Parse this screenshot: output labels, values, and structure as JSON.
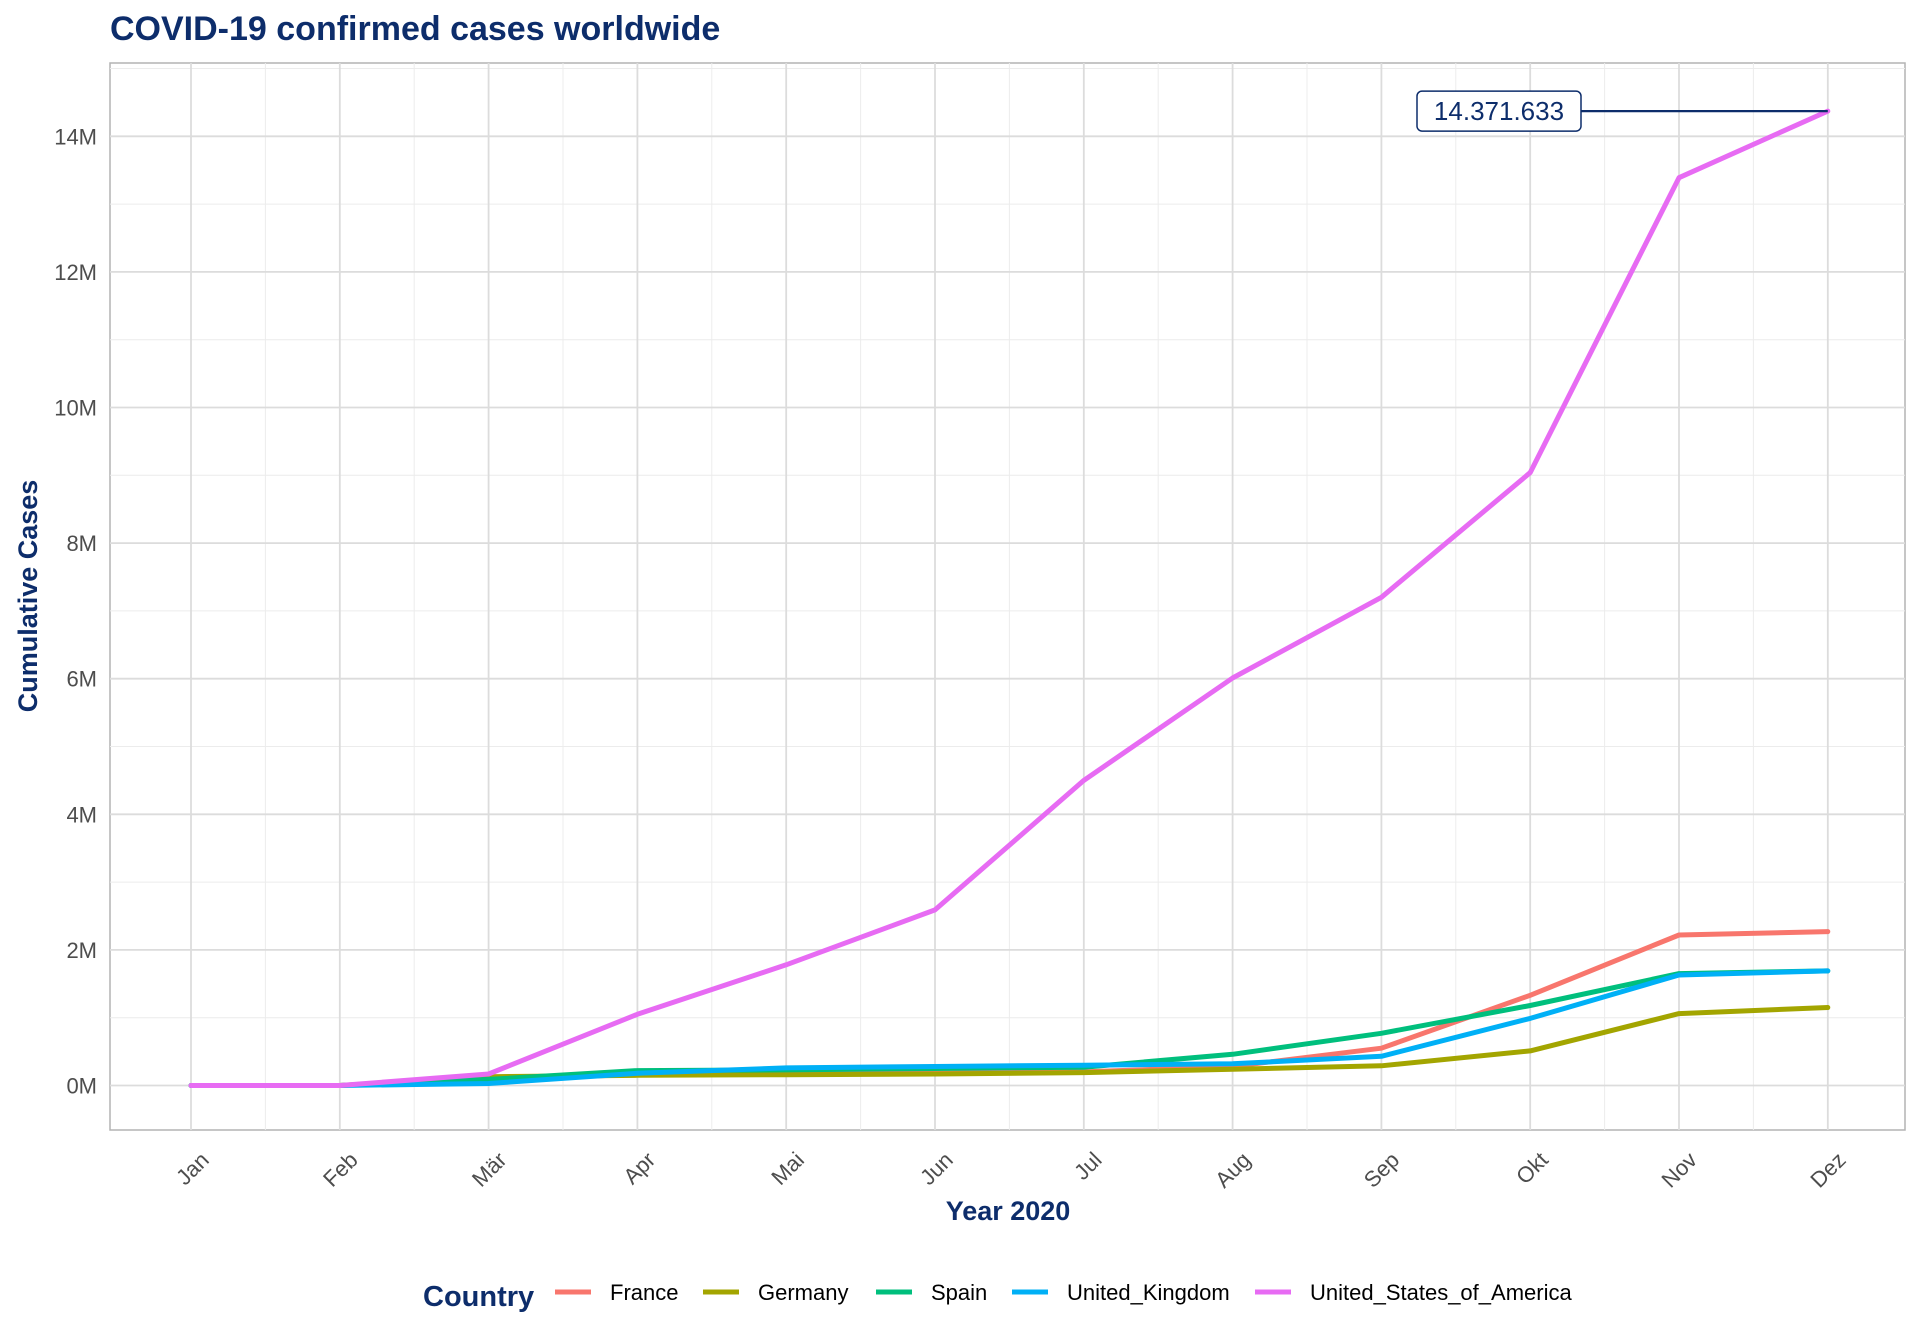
{
  "chart_data": {
    "type": "line",
    "title": "COVID-19 confirmed cases worldwide",
    "xlabel": "Year 2020",
    "ylabel": "Cumulative Cases",
    "categories": [
      "Jan",
      "Feb",
      "Mär",
      "Apr",
      "Mai",
      "Jun",
      "Jul",
      "Aug",
      "Sep",
      "Okt",
      "Nov",
      "Dez"
    ],
    "ylim": [
      -700000,
      15100000
    ],
    "yticks": [
      0,
      2000000,
      4000000,
      6000000,
      8000000,
      10000000,
      12000000,
      14000000
    ],
    "ytick_labels": [
      "0M",
      "2M",
      "4M",
      "6M",
      "8M",
      "10M",
      "12M",
      "14M"
    ],
    "grid": true,
    "legend": {
      "title": "Country",
      "position": "bottom"
    },
    "series": [
      {
        "name": "France",
        "color": "#F8766D",
        "values": [
          0,
          100,
          100000,
          160000,
          170000,
          180000,
          200000,
          280000,
          550000,
          1330000,
          2220000,
          2270000
        ]
      },
      {
        "name": "Germany",
        "color": "#A3A500",
        "values": [
          0,
          10,
          130000,
          150000,
          160000,
          170000,
          190000,
          240000,
          290000,
          510000,
          1060000,
          1150000
        ]
      },
      {
        "name": "Spain",
        "color": "#00BF7D",
        "values": [
          0,
          0,
          90000,
          220000,
          230000,
          250000,
          270000,
          460000,
          770000,
          1180000,
          1650000,
          1690000
        ]
      },
      {
        "name": "United_Kingdom",
        "color": "#00B0F6",
        "values": [
          0,
          0,
          30000,
          180000,
          260000,
          280000,
          300000,
          320000,
          430000,
          990000,
          1630000,
          1690000
        ]
      },
      {
        "name": "United_States_of_America",
        "color": "#E76BF3",
        "values": [
          0,
          10,
          170000,
          1050000,
          1780000,
          2590000,
          4500000,
          6010000,
          7200000,
          9040000,
          13390000,
          14371633
        ]
      }
    ],
    "annotations": [
      {
        "text": "14.371.633",
        "series": "United_States_of_America",
        "category": "Dez",
        "value": 14371633,
        "color": "#0d2d6b"
      }
    ]
  }
}
